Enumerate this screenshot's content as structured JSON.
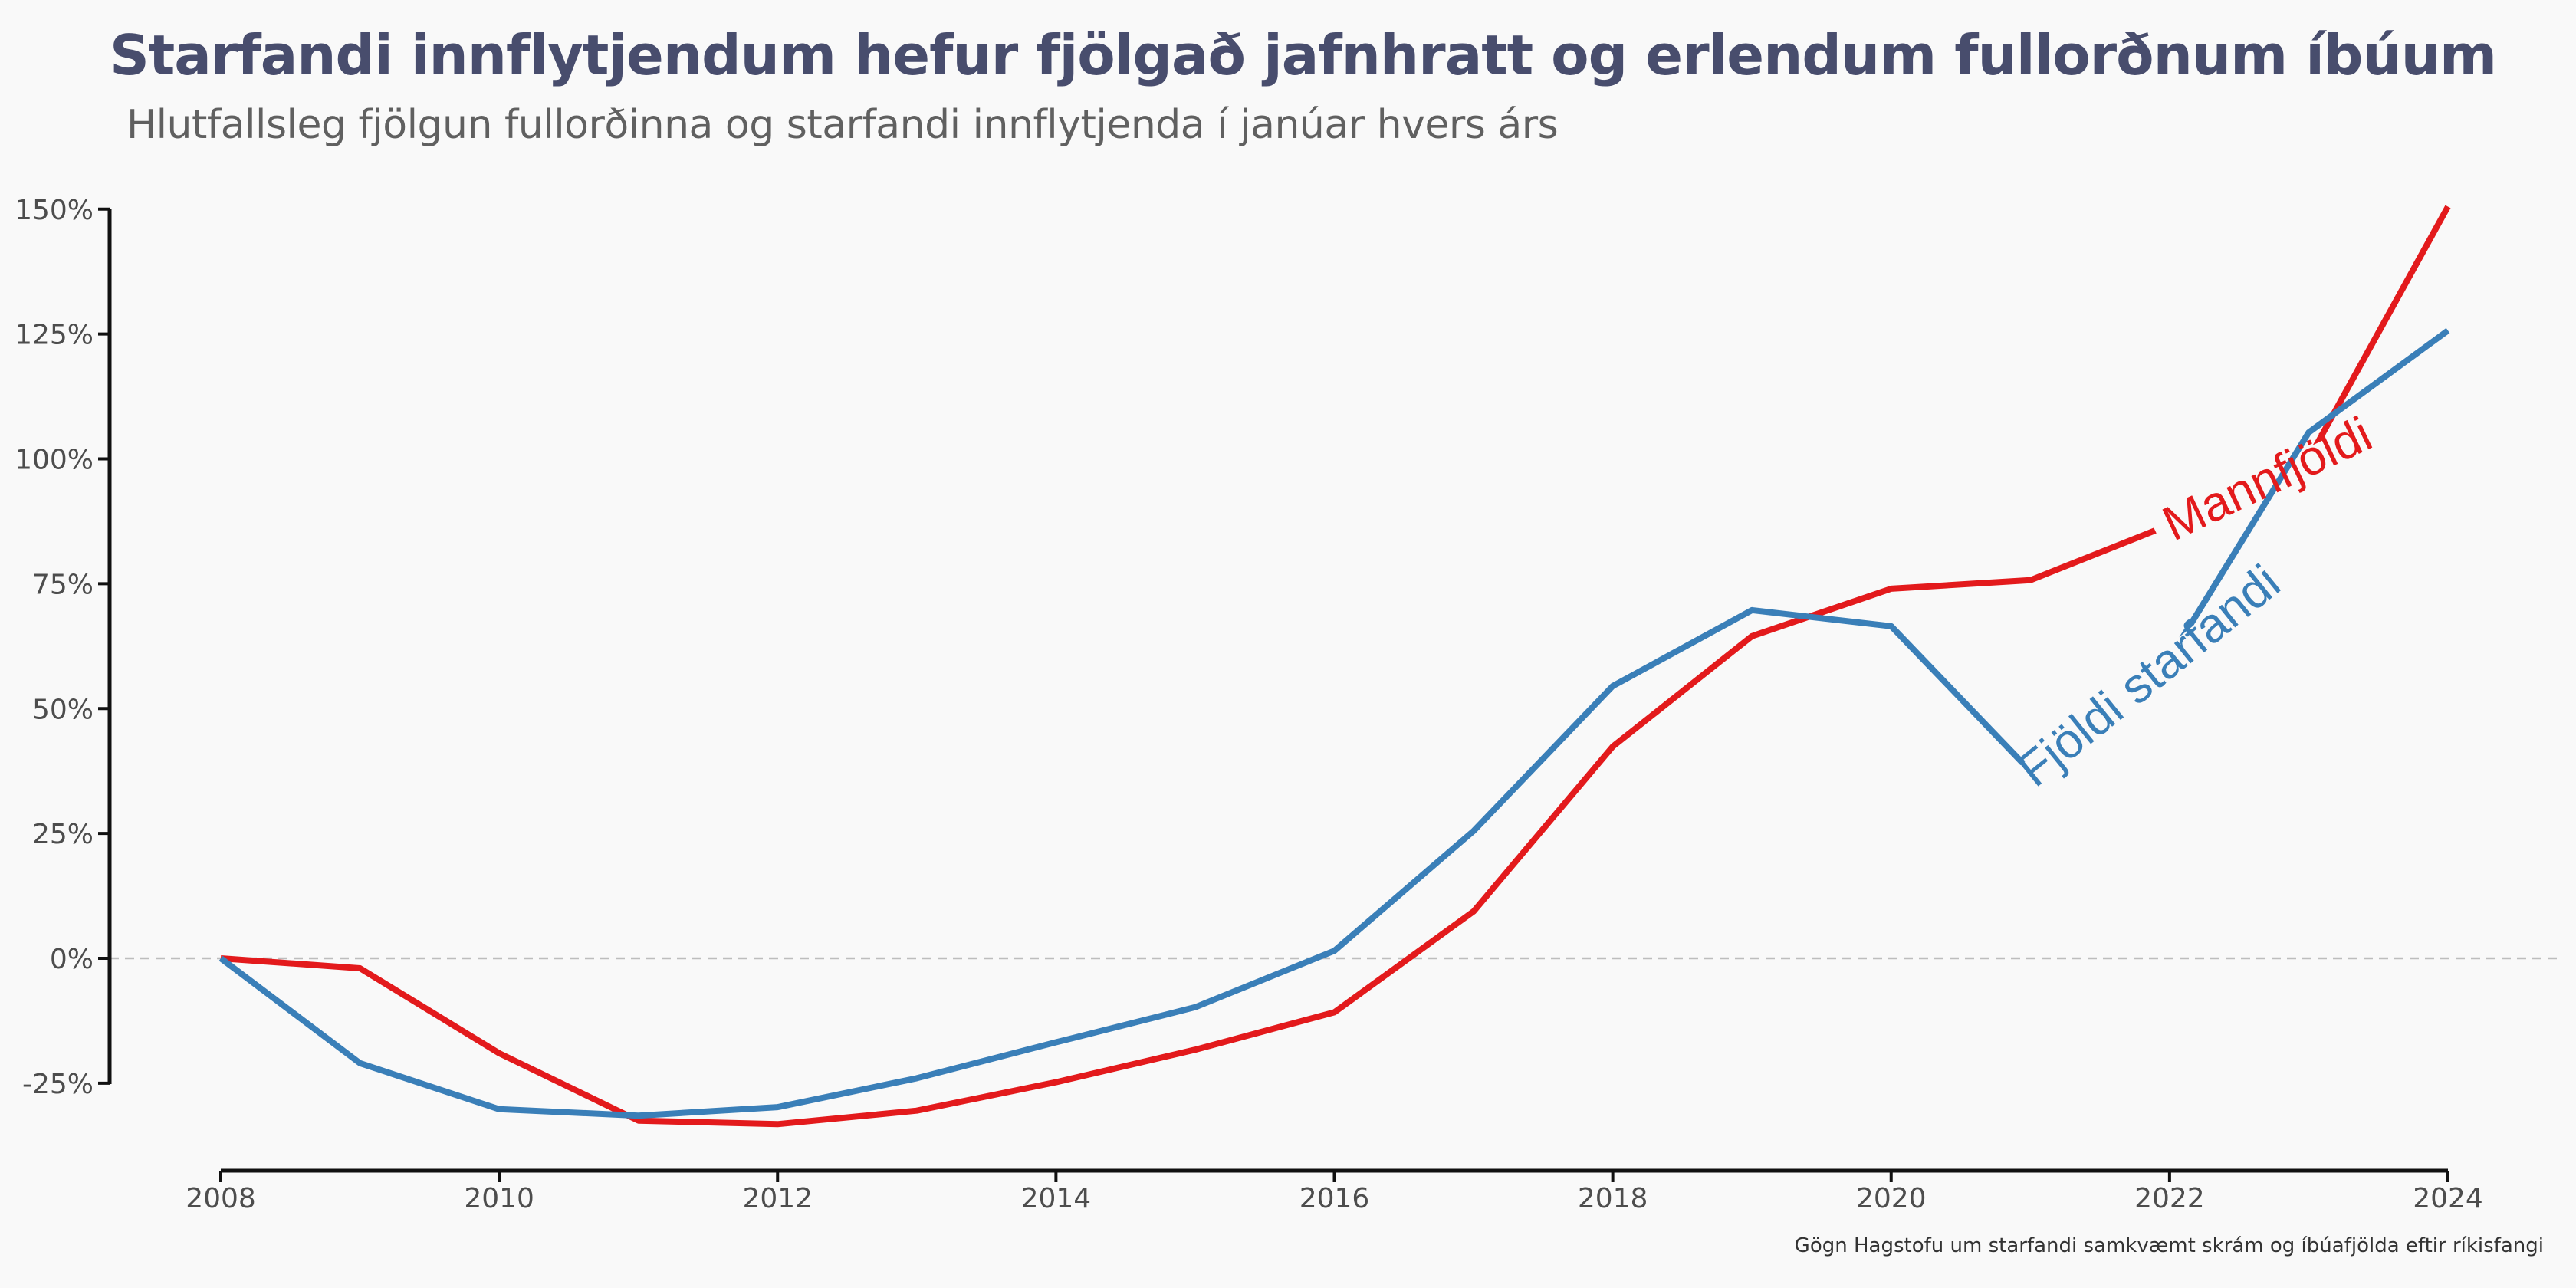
{
  "title": "Starfandi innflytjendum hefur fjölgað jafnhratt og erlendum fullorðnum íbúum",
  "subtitle": "Hlutfallsleg fjölgun fullorðinna og starfandi innflytjenda í janúar hvers árs",
  "caption": "Gögn Hagstofu um starfandi samkvæmt skrám og íbúafjölda eftir ríkisfangi",
  "chart_data": {
    "type": "line",
    "x": [
      2008,
      2009,
      2010,
      2011,
      2012,
      2013,
      2014,
      2015,
      2016,
      2017,
      2018,
      2019,
      2020,
      2021,
      2022,
      2023,
      2024
    ],
    "xlim": [
      2008,
      2024
    ],
    "ylim": [
      -0.42,
      1.5
    ],
    "x_ticks": [
      "2008",
      "2010",
      "2012",
      "2014",
      "2016",
      "2018",
      "2020",
      "2022",
      "2024"
    ],
    "x_tick_values": [
      2008,
      2010,
      2012,
      2014,
      2016,
      2018,
      2020,
      2022,
      2024
    ],
    "y_ticks": [
      "-25%",
      "0%",
      "25%",
      "50%",
      "75%",
      "100%",
      "125%",
      "150%"
    ],
    "y_tick_values": [
      -0.25,
      0,
      0.25,
      0.5,
      0.75,
      1.0,
      1.25,
      1.5
    ],
    "reference_line": 0,
    "grid": false,
    "series": [
      {
        "name": "Mannfjöldi",
        "color": "#e31a1c",
        "values": [
          0.0,
          -0.02,
          -0.19,
          -0.325,
          -0.332,
          -0.305,
          -0.248,
          -0.183,
          -0.108,
          0.094,
          0.424,
          0.645,
          0.74,
          0.757,
          0.868,
          1.0,
          1.505
        ],
        "label_x": 2022.7
      },
      {
        "name": "Fjöldi starfandi",
        "color": "#3a7fb8",
        "values": [
          0.0,
          -0.21,
          -0.302,
          -0.315,
          -0.298,
          -0.24,
          -0.168,
          -0.098,
          0.015,
          0.255,
          0.545,
          0.697,
          0.665,
          0.375,
          0.6,
          1.053,
          1.257
        ],
        "label_x": 2021.85
      }
    ]
  }
}
